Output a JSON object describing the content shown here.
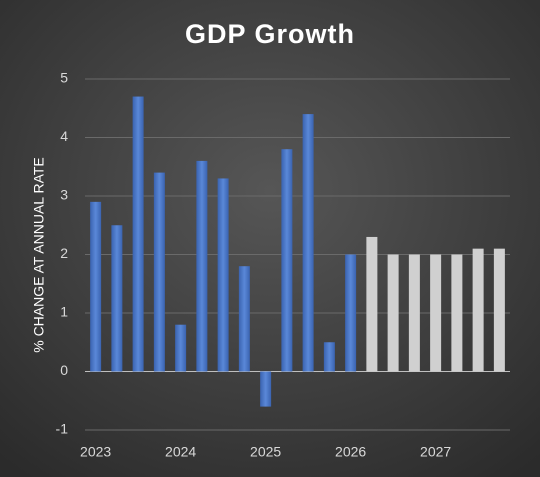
{
  "chart_data": {
    "type": "bar",
    "title": "GDP Growth",
    "y_label": "% CHANGE AT ANNUAL RATE",
    "categories": [
      "2023",
      null,
      null,
      null,
      "2024",
      null,
      null,
      null,
      "2025",
      null,
      null,
      null,
      "2026",
      null,
      null,
      null,
      "2027",
      null,
      null,
      null
    ],
    "values": [
      2.9,
      2.5,
      4.7,
      3.4,
      0.8,
      3.6,
      3.3,
      1.8,
      -0.6,
      3.8,
      4.4,
      0.5,
      2.0,
      2.3,
      2.0,
      2.0,
      2.0,
      2.0,
      2.1,
      2.1
    ],
    "colors": [
      "#4472c4",
      "#4472c4",
      "#4472c4",
      "#4472c4",
      "#4472c4",
      "#4472c4",
      "#4472c4",
      "#4472c4",
      "#4472c4",
      "#4472c4",
      "#4472c4",
      "#4472c4",
      "#4472c4",
      "#d0d0d0",
      "#d0d0d0",
      "#d0d0d0",
      "#d0d0d0",
      "#d0d0d0",
      "#d0d0d0",
      "#d0d0d0"
    ],
    "ylim": [
      -1,
      5
    ],
    "yticks": [
      -1,
      0,
      1,
      2,
      3,
      4,
      5
    ],
    "grid": true
  }
}
